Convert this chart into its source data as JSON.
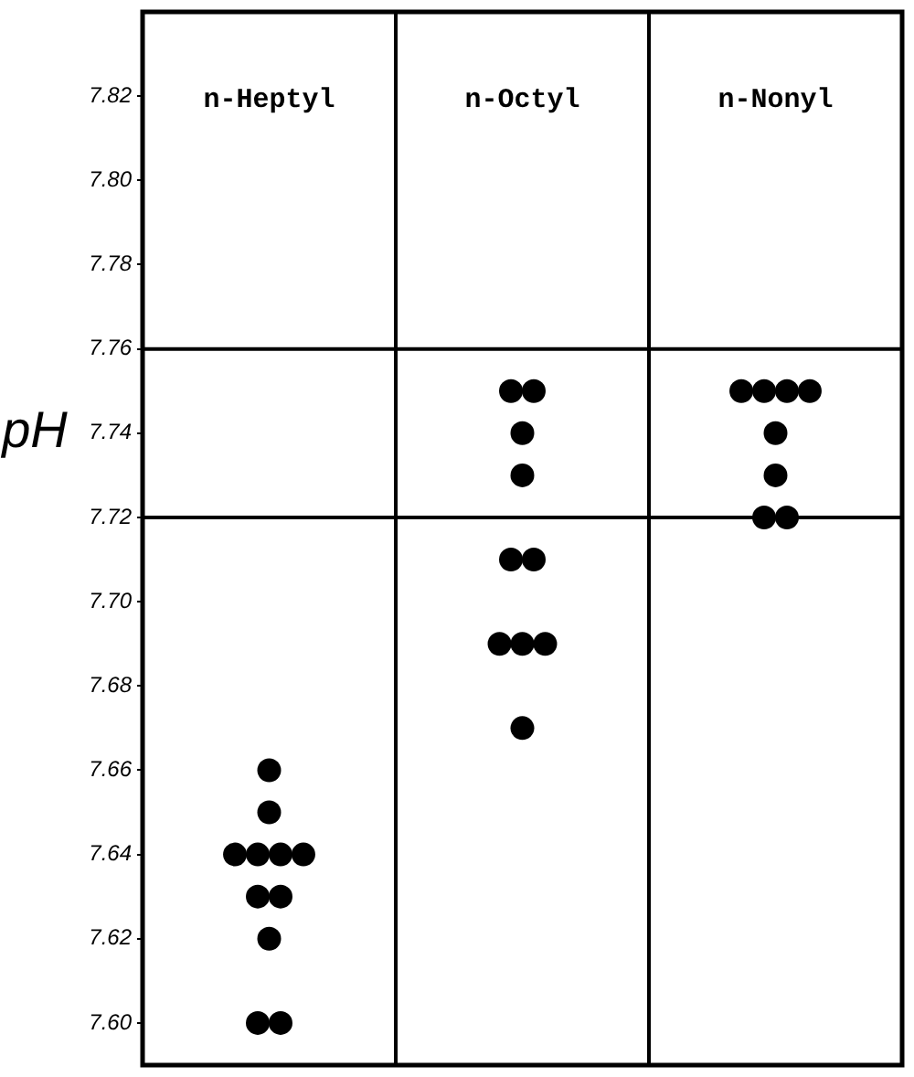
{
  "chart_data": {
    "type": "scatter",
    "ylabel": "pH",
    "categories": [
      "n-Heptyl",
      "n-Octyl",
      "n-Nonyl"
    ],
    "series": [
      {
        "color": "#000000",
        "x": [
          "n-Heptyl",
          "n-Heptyl",
          "n-Heptyl",
          "n-Heptyl",
          "n-Heptyl",
          "n-Heptyl",
          "n-Heptyl",
          "n-Heptyl",
          "n-Heptyl",
          "n-Heptyl",
          "n-Heptyl",
          "n-Octyl",
          "n-Octyl",
          "n-Octyl",
          "n-Octyl",
          "n-Octyl",
          "n-Octyl",
          "n-Octyl",
          "n-Octyl",
          "n-Octyl",
          "n-Octyl",
          "n-Nonyl",
          "n-Nonyl",
          "n-Nonyl",
          "n-Nonyl",
          "n-Nonyl",
          "n-Nonyl",
          "n-Nonyl",
          "n-Nonyl"
        ],
        "values": [
          7.66,
          7.65,
          7.64,
          7.64,
          7.64,
          7.64,
          7.63,
          7.63,
          7.62,
          7.6,
          7.6,
          7.75,
          7.75,
          7.74,
          7.73,
          7.71,
          7.71,
          7.69,
          7.69,
          7.69,
          7.67,
          7.75,
          7.75,
          7.75,
          7.75,
          7.74,
          7.73,
          7.72,
          7.72
        ]
      }
    ],
    "ylim": [
      7.59,
      7.84
    ],
    "yticks": [
      {
        "value": 7.6,
        "label": "7.60"
      },
      {
        "value": 7.62,
        "label": "7.62"
      },
      {
        "value": 7.64,
        "label": "7.64"
      },
      {
        "value": 7.66,
        "label": "7.66"
      },
      {
        "value": 7.68,
        "label": "7.68"
      },
      {
        "value": 7.7,
        "label": "7.70"
      },
      {
        "value": 7.72,
        "label": "7.72"
      },
      {
        "value": 7.74,
        "label": "7.74"
      },
      {
        "value": 7.76,
        "label": "7.76"
      },
      {
        "value": 7.78,
        "label": "7.78"
      },
      {
        "value": 7.8,
        "label": "7.80"
      },
      {
        "value": 7.82,
        "label": "7.82"
      }
    ],
    "grid": "x",
    "marker": "circle",
    "ref_lines": [
      {
        "axis": "y",
        "value": 7.76
      },
      {
        "axis": "y",
        "value": 7.72
      }
    ]
  }
}
